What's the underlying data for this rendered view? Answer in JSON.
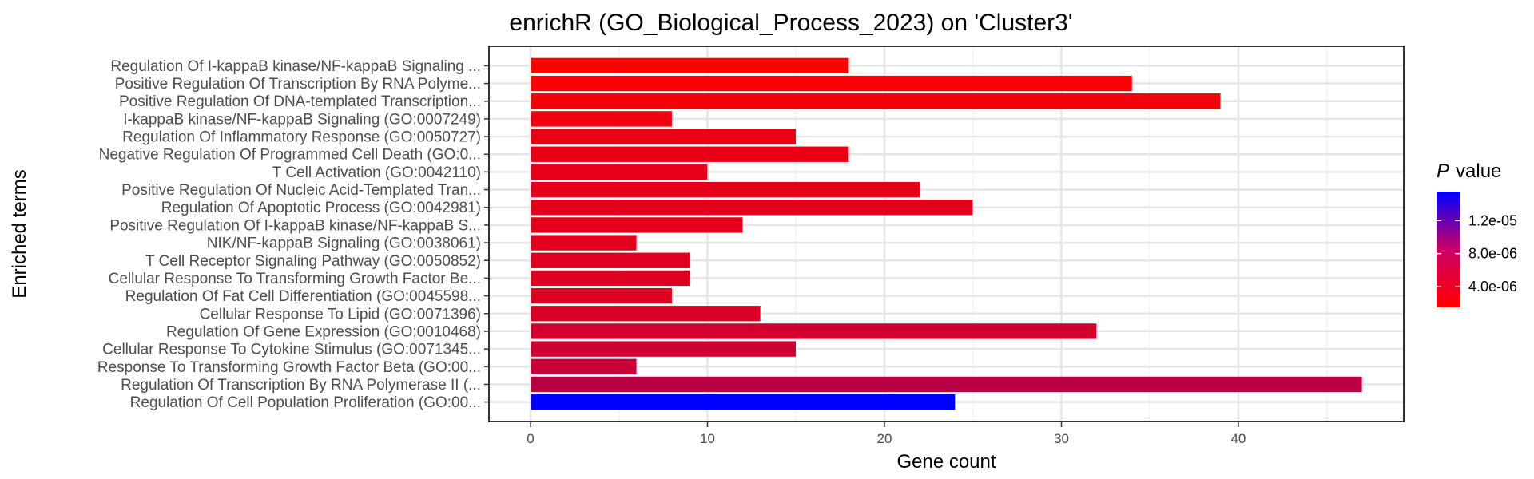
{
  "chart_data": {
    "type": "bar",
    "orientation": "horizontal",
    "title": "enrichR (GO_Biological_Process_2023) on 'Cluster3'",
    "xlabel": "Gene count",
    "ylabel": "Enriched terms",
    "xlim": [
      -2.35,
      49.35
    ],
    "xticks": [
      "0",
      "10",
      "20",
      "30",
      "40"
    ],
    "xtick_values": [
      0,
      10,
      20,
      30,
      40
    ],
    "grid": true,
    "legend_position": "right",
    "legend": {
      "title_italic": "P",
      "title_rest": "value",
      "ticks": [
        "1.2e-05",
        "8.0e-06",
        "4.0e-06"
      ],
      "tick_values": [
        1.2e-05,
        8e-06,
        4e-06
      ],
      "range": [
        1.5e-06,
        1.55e-05
      ],
      "colors": {
        "low": "#ff0000",
        "high": "#0000ff"
      }
    },
    "bars": [
      {
        "term": "Regulation Of I-kappaB kinase/NF-kappaB Signaling ...",
        "count": 18,
        "p_value": 1.6e-06
      },
      {
        "term": "Positive Regulation Of Transcription By RNA Polyme...",
        "count": 34,
        "p_value": 1.7e-06
      },
      {
        "term": "Positive Regulation Of DNA-templated Transcription...",
        "count": 39,
        "p_value": 2e-06
      },
      {
        "term": "I-kappaB kinase/NF-kappaB Signaling (GO:0007249)",
        "count": 8,
        "p_value": 2.3e-06
      },
      {
        "term": "Regulation Of Inflammatory Response (GO:0050727)",
        "count": 15,
        "p_value": 2.6e-06
      },
      {
        "term": "Negative Regulation Of Programmed Cell Death (GO:0...",
        "count": 18,
        "p_value": 2.7e-06
      },
      {
        "term": "T Cell Activation (GO:0042110)",
        "count": 10,
        "p_value": 2.8e-06
      },
      {
        "term": "Positive Regulation Of Nucleic Acid-Templated Tran...",
        "count": 22,
        "p_value": 2.9e-06
      },
      {
        "term": "Regulation Of Apoptotic Process (GO:0042981)",
        "count": 25,
        "p_value": 3e-06
      },
      {
        "term": "Positive Regulation Of I-kappaB kinase/NF-kappaB S...",
        "count": 12,
        "p_value": 3e-06
      },
      {
        "term": "NIK/NF-kappaB Signaling (GO:0038061)",
        "count": 6,
        "p_value": 3.1e-06
      },
      {
        "term": "T Cell Receptor Signaling Pathway (GO:0050852)",
        "count": 9,
        "p_value": 3.2e-06
      },
      {
        "term": "Cellular Response To Transforming Growth Factor Be...",
        "count": 9,
        "p_value": 3.3e-06
      },
      {
        "term": "Regulation Of Fat Cell Differentiation (GO:0045598...",
        "count": 8,
        "p_value": 3.4e-06
      },
      {
        "term": "Cellular Response To Lipid (GO:0071396)",
        "count": 13,
        "p_value": 3.6e-06
      },
      {
        "term": "Regulation Of Gene Expression (GO:0010468)",
        "count": 32,
        "p_value": 3.9e-06
      },
      {
        "term": "Cellular Response To Cytokine Stimulus (GO:0071345...",
        "count": 15,
        "p_value": 4.2e-06
      },
      {
        "term": "Response To Transforming Growth Factor Beta (GO:00...",
        "count": 6,
        "p_value": 4.6e-06
      },
      {
        "term": "Regulation Of Transcription By RNA Polymerase II (...",
        "count": 47,
        "p_value": 5.3e-06
      },
      {
        "term": "Regulation Of Cell Population Proliferation (GO:00...",
        "count": 24,
        "p_value": 1.55e-05
      }
    ]
  }
}
